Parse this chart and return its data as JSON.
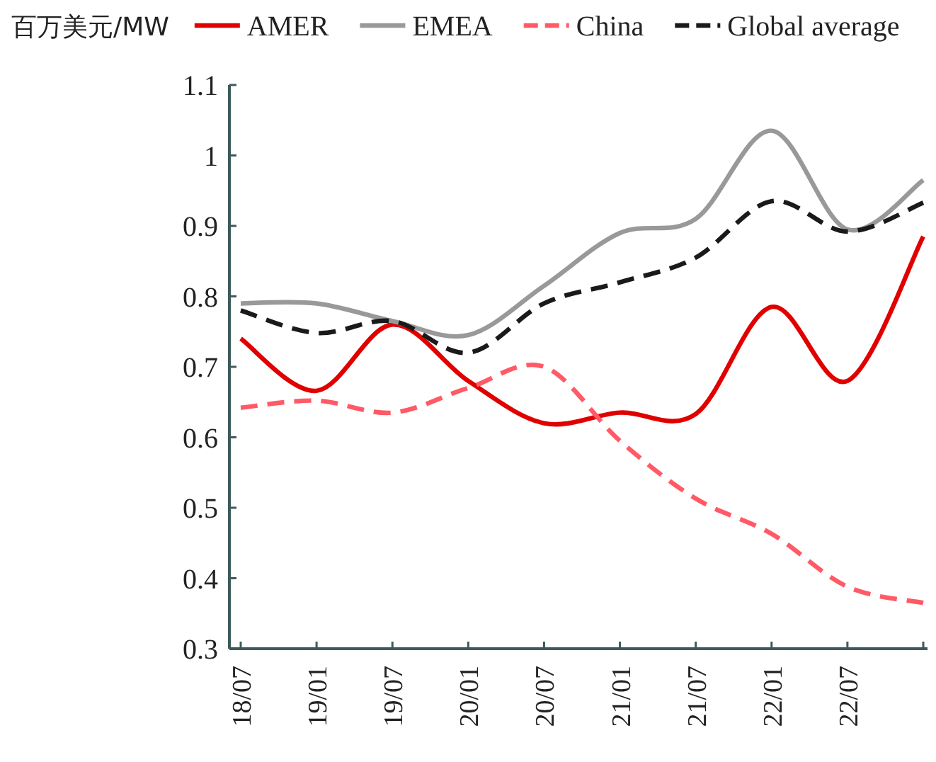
{
  "chart_data": {
    "type": "line",
    "ylabel": "百万美元/MW",
    "legend": "top",
    "ylim": [
      0.3,
      1.1
    ],
    "yticks": [
      0.3,
      0.4,
      0.5,
      0.6,
      0.7,
      0.8,
      0.9,
      1,
      1.1
    ],
    "categories": [
      "18/07",
      "19/01",
      "19/07",
      "20/01",
      "20/07",
      "21/01",
      "21/07",
      "22/01",
      "22/07",
      null
    ],
    "series": [
      {
        "name": "AMER",
        "color": "#e00000",
        "line_style": "solid",
        "values": [
          0.74,
          0.666,
          0.76,
          0.68,
          0.62,
          0.635,
          0.633,
          0.785,
          0.68,
          0.885
        ]
      },
      {
        "name": "EMEA",
        "color": "#999999",
        "line_style": "solid",
        "values": [
          0.79,
          0.79,
          0.765,
          0.745,
          0.815,
          0.89,
          0.91,
          1.035,
          0.895,
          0.965
        ]
      },
      {
        "name": "China",
        "color": "#ff5a66",
        "line_style": "dashed",
        "values": [
          0.642,
          0.652,
          0.635,
          0.67,
          0.7,
          0.595,
          0.513,
          0.463,
          0.388,
          0.365
        ]
      },
      {
        "name": "Global average",
        "color": "#1a1a1a",
        "line_style": "dashed",
        "values": [
          0.78,
          0.748,
          0.765,
          0.72,
          0.79,
          0.82,
          0.855,
          0.935,
          0.892,
          0.933
        ]
      }
    ]
  }
}
